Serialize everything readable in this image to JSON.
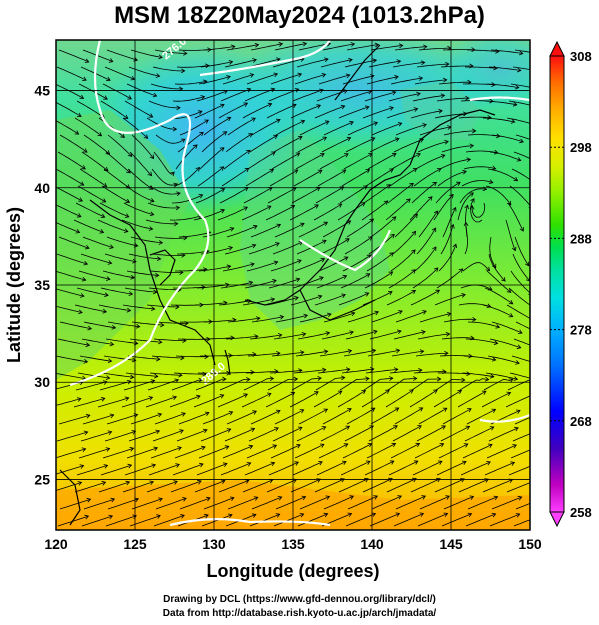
{
  "title": "MSM 18Z20May2024 (1013.2hPa)",
  "map": {
    "xlabel": "Longitude (degrees)",
    "ylabel": "Latitude  (degrees)",
    "x_ticks": [
      "120",
      "125",
      "130",
      "135",
      "140",
      "145",
      "150"
    ],
    "y_ticks": [
      "25",
      "30",
      "35",
      "40",
      "45"
    ],
    "xlim": [
      120,
      150
    ],
    "ylim": [
      22.4,
      47.6
    ],
    "x_tick_values": [
      120,
      125,
      130,
      135,
      140,
      145,
      150
    ],
    "y_tick_values": [
      25,
      30,
      35,
      40,
      45
    ],
    "contour_labels": [
      "276.0",
      "288.0"
    ]
  },
  "colorbar": {
    "ticks": [
      "308",
      "298",
      "288",
      "278",
      "268",
      "258"
    ],
    "tick_values": [
      308,
      298,
      288,
      278,
      268,
      258
    ],
    "range": [
      258,
      308
    ],
    "colors": [
      "#ff3fff",
      "#c000c0",
      "#4000c0",
      "#0000ff",
      "#0070ff",
      "#00b0ff",
      "#00e0e0",
      "#00e0a0",
      "#00e050",
      "#30e000",
      "#90f000",
      "#d8f000",
      "#ffe000",
      "#ffb000",
      "#ff7000",
      "#ff3000",
      "#ff1010"
    ]
  },
  "footer": {
    "line1": "Drawing by DCL (https://www.gfd-dennou.org/library/dcl/)",
    "line2": "Data from http://database.rish.kyoto-u.ac.jp/arch/jmadata/"
  }
}
